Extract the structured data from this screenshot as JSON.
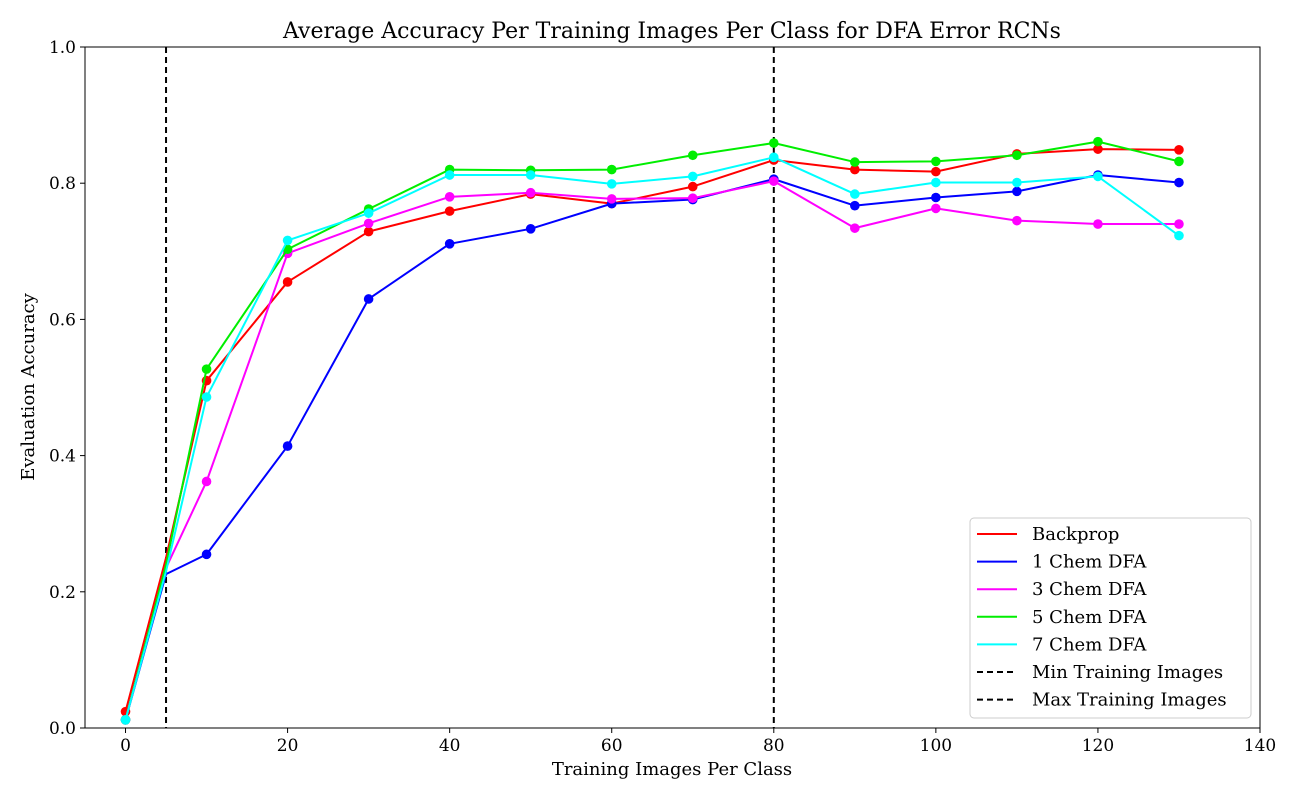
{
  "chart_data": {
    "type": "line",
    "title": "Average Accuracy Per Training Images Per Class for DFA Error RCNs",
    "xlabel": "Training Images Per Class",
    "ylabel": "Evaluation Accuracy",
    "xlim": [
      -5,
      140
    ],
    "ylim": [
      0,
      1
    ],
    "xticks": [
      0,
      20,
      40,
      60,
      80,
      100,
      120,
      140
    ],
    "yticks": [
      0.0,
      0.2,
      0.4,
      0.6,
      0.8,
      1.0
    ],
    "xtick_labels": [
      "0",
      "20",
      "40",
      "60",
      "80",
      "100",
      "120",
      "140"
    ],
    "ytick_labels": [
      "0.0",
      "0.2",
      "0.4",
      "0.6",
      "0.8",
      "1.0"
    ],
    "grid": false,
    "legend_position": "bottom-right",
    "x": [
      0,
      5,
      10,
      20,
      30,
      40,
      50,
      60,
      70,
      80,
      90,
      100,
      110,
      120,
      130
    ],
    "series": [
      {
        "name": "Backprop",
        "color": "#ff0000",
        "values": [
          0.024,
          0.25,
          0.51,
          0.655,
          0.729,
          0.759,
          0.784,
          0.77,
          0.795,
          0.834,
          0.82,
          0.817,
          0.843,
          0.85,
          0.849
        ]
      },
      {
        "name": "1 Chem DFA",
        "color": "#0000ff",
        "values": [
          0.012,
          0.226,
          0.255,
          0.414,
          0.63,
          0.711,
          0.733,
          0.77,
          0.776,
          0.806,
          0.767,
          0.779,
          0.788,
          0.812,
          0.801
        ]
      },
      {
        "name": "3 Chem DFA",
        "color": "#ff00ff",
        "values": [
          0.012,
          0.235,
          0.362,
          0.697,
          0.741,
          0.78,
          0.786,
          0.777,
          0.778,
          0.803,
          0.734,
          0.763,
          0.745,
          0.74,
          0.74
        ]
      },
      {
        "name": "5 Chem DFA",
        "color": "#00ee00",
        "values": [
          0.012,
          0.24,
          0.527,
          0.703,
          0.762,
          0.82,
          0.819,
          0.82,
          0.841,
          0.859,
          0.831,
          0.832,
          0.841,
          0.861,
          0.832
        ]
      },
      {
        "name": "7 Chem DFA",
        "color": "#00ffff",
        "values": [
          0.012,
          0.23,
          0.486,
          0.716,
          0.756,
          0.812,
          0.812,
          0.799,
          0.81,
          0.838,
          0.784,
          0.801,
          0.801,
          0.81,
          0.723
        ]
      }
    ],
    "vlines": [
      {
        "name": "Min Training Images",
        "x": 5,
        "color": "#000000"
      },
      {
        "name": "Max Training Images",
        "x": 80,
        "color": "#000000"
      }
    ]
  }
}
